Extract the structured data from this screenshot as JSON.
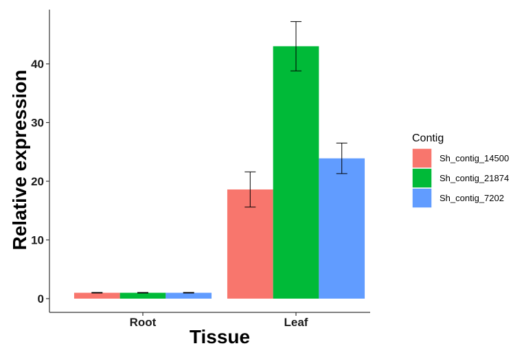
{
  "chart_data": {
    "type": "bar",
    "xlabel": "Tissue",
    "ylabel": "Relative expression",
    "categories": [
      "Root",
      "Leaf"
    ],
    "ylim": [
      0,
      47.5
    ],
    "yticks": [
      0,
      10,
      20,
      30,
      40
    ],
    "grid": false,
    "legend": {
      "title": "Contig",
      "position": "right"
    },
    "series": [
      {
        "name": "Sh_contig_14500",
        "color": "#F8766D",
        "values": [
          1,
          18.6
        ],
        "error": [
          0.05,
          3.0
        ]
      },
      {
        "name": "Sh_contig_21874",
        "color": "#00BA38",
        "values": [
          1,
          43.0
        ],
        "error": [
          0.05,
          4.2
        ]
      },
      {
        "name": "Sh_contig_7202",
        "color": "#619CFF",
        "values": [
          1,
          23.9
        ],
        "error": [
          0.05,
          2.6
        ]
      }
    ]
  }
}
